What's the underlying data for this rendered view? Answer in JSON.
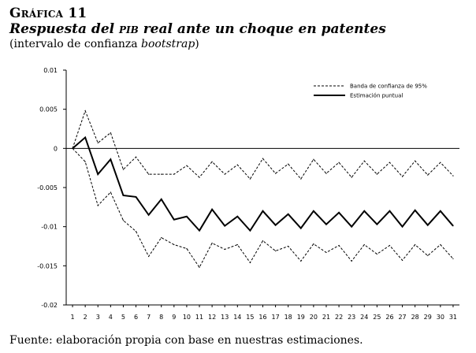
{
  "figure": {
    "label": "Gráfica 11",
    "title_before": "Respuesta del ",
    "title_abbr": "pib",
    "title_after": " real ante un choque en patentes",
    "subtitle_before": "(intervalo de confianza ",
    "subtitle_italic": "bootstrap",
    "subtitle_after": ")"
  },
  "source": "Fuente: elaboración propia con base en nuestras estimaciones.",
  "colors": {
    "line": "#000000",
    "background": "#ffffff"
  },
  "chart_data": {
    "type": "line",
    "title": "Respuesta del PIB real ante un choque en patentes",
    "xlabel": "",
    "ylabel": "",
    "x": [
      1,
      2,
      3,
      4,
      5,
      6,
      7,
      8,
      9,
      10,
      11,
      12,
      13,
      14,
      15,
      16,
      17,
      18,
      19,
      20,
      21,
      22,
      23,
      24,
      25,
      26,
      27,
      28,
      29,
      30,
      31
    ],
    "ylim": [
      -0.02,
      0.01
    ],
    "yticks": [
      -0.02,
      -0.015,
      -0.01,
      -0.005,
      0,
      0.005,
      0.01
    ],
    "ytick_labels": [
      "-0.02",
      "-0.015",
      "-0.01",
      "-0.005",
      "0",
      "0.005",
      "0.01"
    ],
    "zero_line": true,
    "legend_position": "top-right",
    "series": [
      {
        "name": "Banda de confianza de 95%",
        "style": "dashed",
        "values": [
          0,
          0.0048,
          0.0007,
          0.002,
          -0.0027,
          -0.0011,
          -0.0033,
          -0.0033,
          -0.0033,
          -0.0022,
          -0.0037,
          -0.0017,
          -0.0033,
          -0.0021,
          -0.0039,
          -0.0013,
          -0.0032,
          -0.002,
          -0.0039,
          -0.0014,
          -0.0032,
          -0.0018,
          -0.0037,
          -0.0016,
          -0.0033,
          -0.0018,
          -0.0036,
          -0.0016,
          -0.0034,
          -0.0018,
          -0.0035
        ]
      },
      {
        "name": "Banda de confianza de 95%",
        "style": "dashed",
        "legend": false,
        "values": [
          0,
          -0.0017,
          -0.0073,
          -0.0056,
          -0.0092,
          -0.0106,
          -0.0138,
          -0.0114,
          -0.0123,
          -0.0128,
          -0.0152,
          -0.0121,
          -0.0129,
          -0.0123,
          -0.0146,
          -0.0118,
          -0.0131,
          -0.0125,
          -0.0144,
          -0.0122,
          -0.0133,
          -0.0124,
          -0.0144,
          -0.0123,
          -0.0135,
          -0.0124,
          -0.0143,
          -0.0123,
          -0.0137,
          -0.0123,
          -0.0141
        ]
      },
      {
        "name": "Estimación puntual",
        "style": "solid",
        "values": [
          0,
          0.0014,
          -0.0033,
          -0.0014,
          -0.006,
          -0.0062,
          -0.0085,
          -0.0065,
          -0.0091,
          -0.0087,
          -0.0105,
          -0.0078,
          -0.0099,
          -0.0087,
          -0.0105,
          -0.008,
          -0.0098,
          -0.0084,
          -0.0102,
          -0.008,
          -0.0097,
          -0.0082,
          -0.01,
          -0.008,
          -0.0097,
          -0.008,
          -0.01,
          -0.0079,
          -0.0098,
          -0.008,
          -0.0099
        ]
      }
    ]
  }
}
